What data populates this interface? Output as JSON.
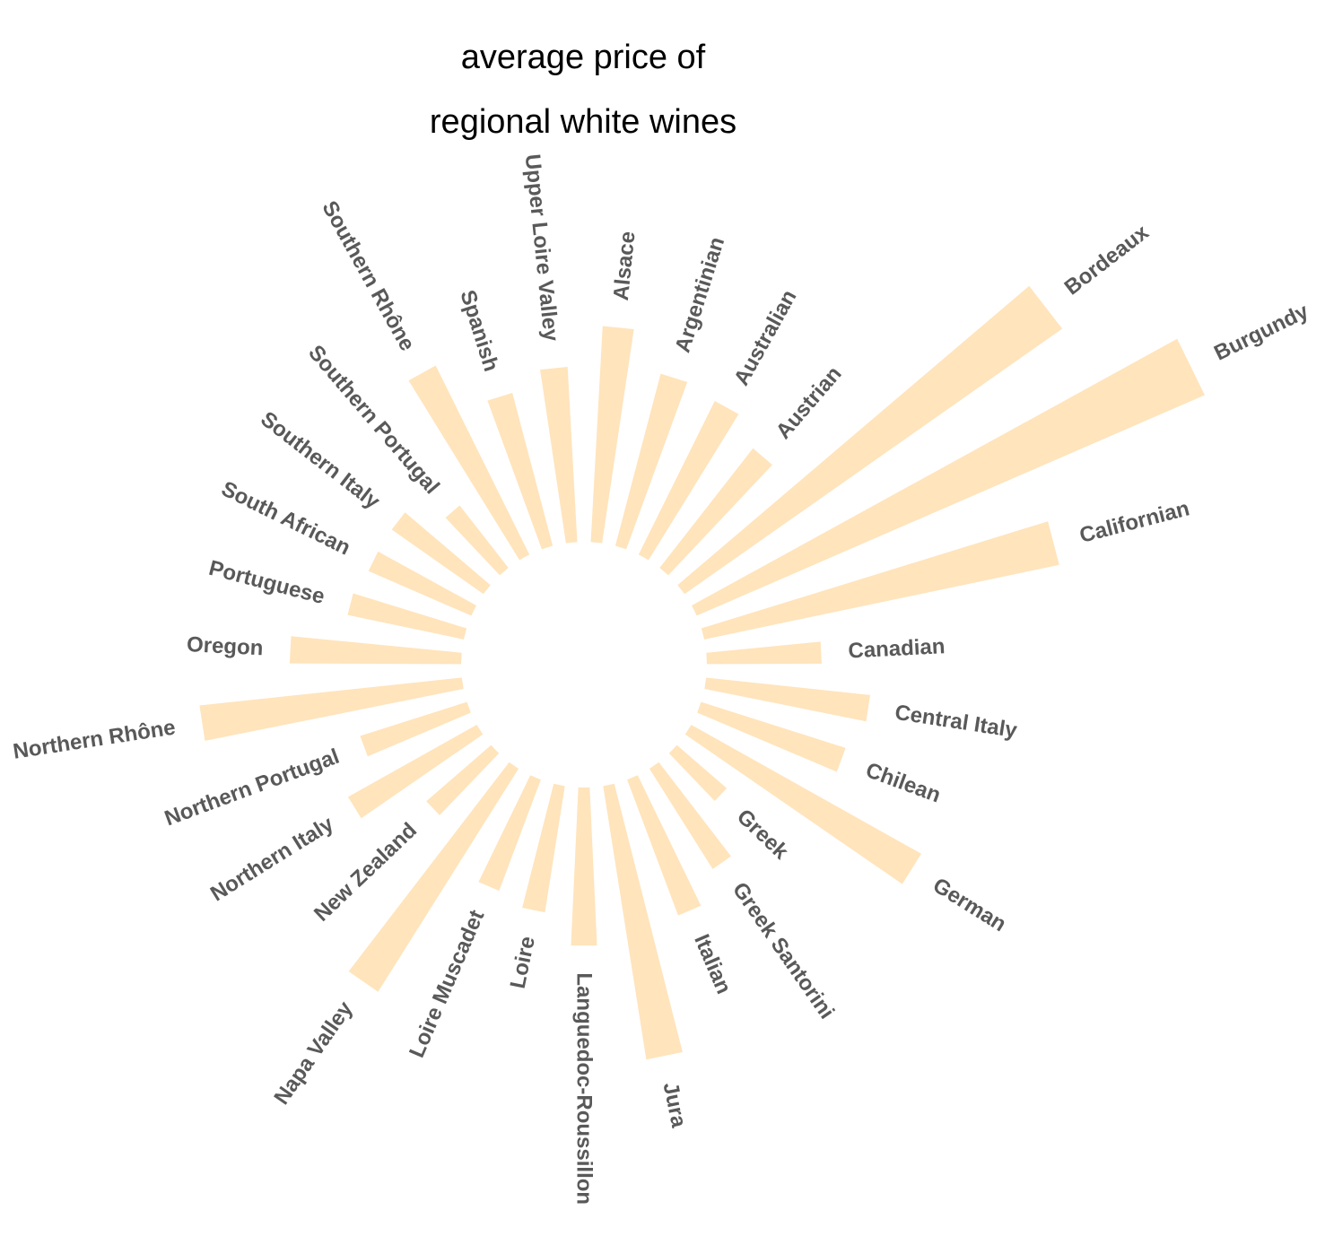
{
  "chart_data": {
    "type": "bar",
    "coord": "polar",
    "title_lines": [
      "average price of",
      "regional white wines"
    ],
    "categories": [
      "Alsace",
      "Argentinian",
      "Australian",
      "Austrian",
      "Bordeaux",
      "Burgundy",
      "Californian",
      "Canadian",
      "Central Italy",
      "Chilean",
      "German",
      "Greek",
      "Greek Santorini",
      "Italian",
      "Jura",
      "Languedoc-Roussillon",
      "Loire",
      "Loire Muscadet",
      "Napa Valley",
      "New Zealand",
      "Northern Italy",
      "Northern Portugal",
      "Northern Rhône",
      "Oregon",
      "Portuguese",
      "South African",
      "Southern Italy",
      "Southern Portugal",
      "Southern Rhône",
      "Spanish",
      "Upper Loire Valley"
    ],
    "values": [
      164,
      135,
      130,
      115,
      350,
      420,
      275,
      87,
      125,
      115,
      200,
      50,
      90,
      110,
      210,
      120,
      97,
      90,
      200,
      65,
      112,
      85,
      200,
      130,
      90,
      85,
      85,
      60,
      160,
      120,
      133
    ],
    "bar_color": "#FFE4BC",
    "grid": false,
    "legend": "none"
  }
}
